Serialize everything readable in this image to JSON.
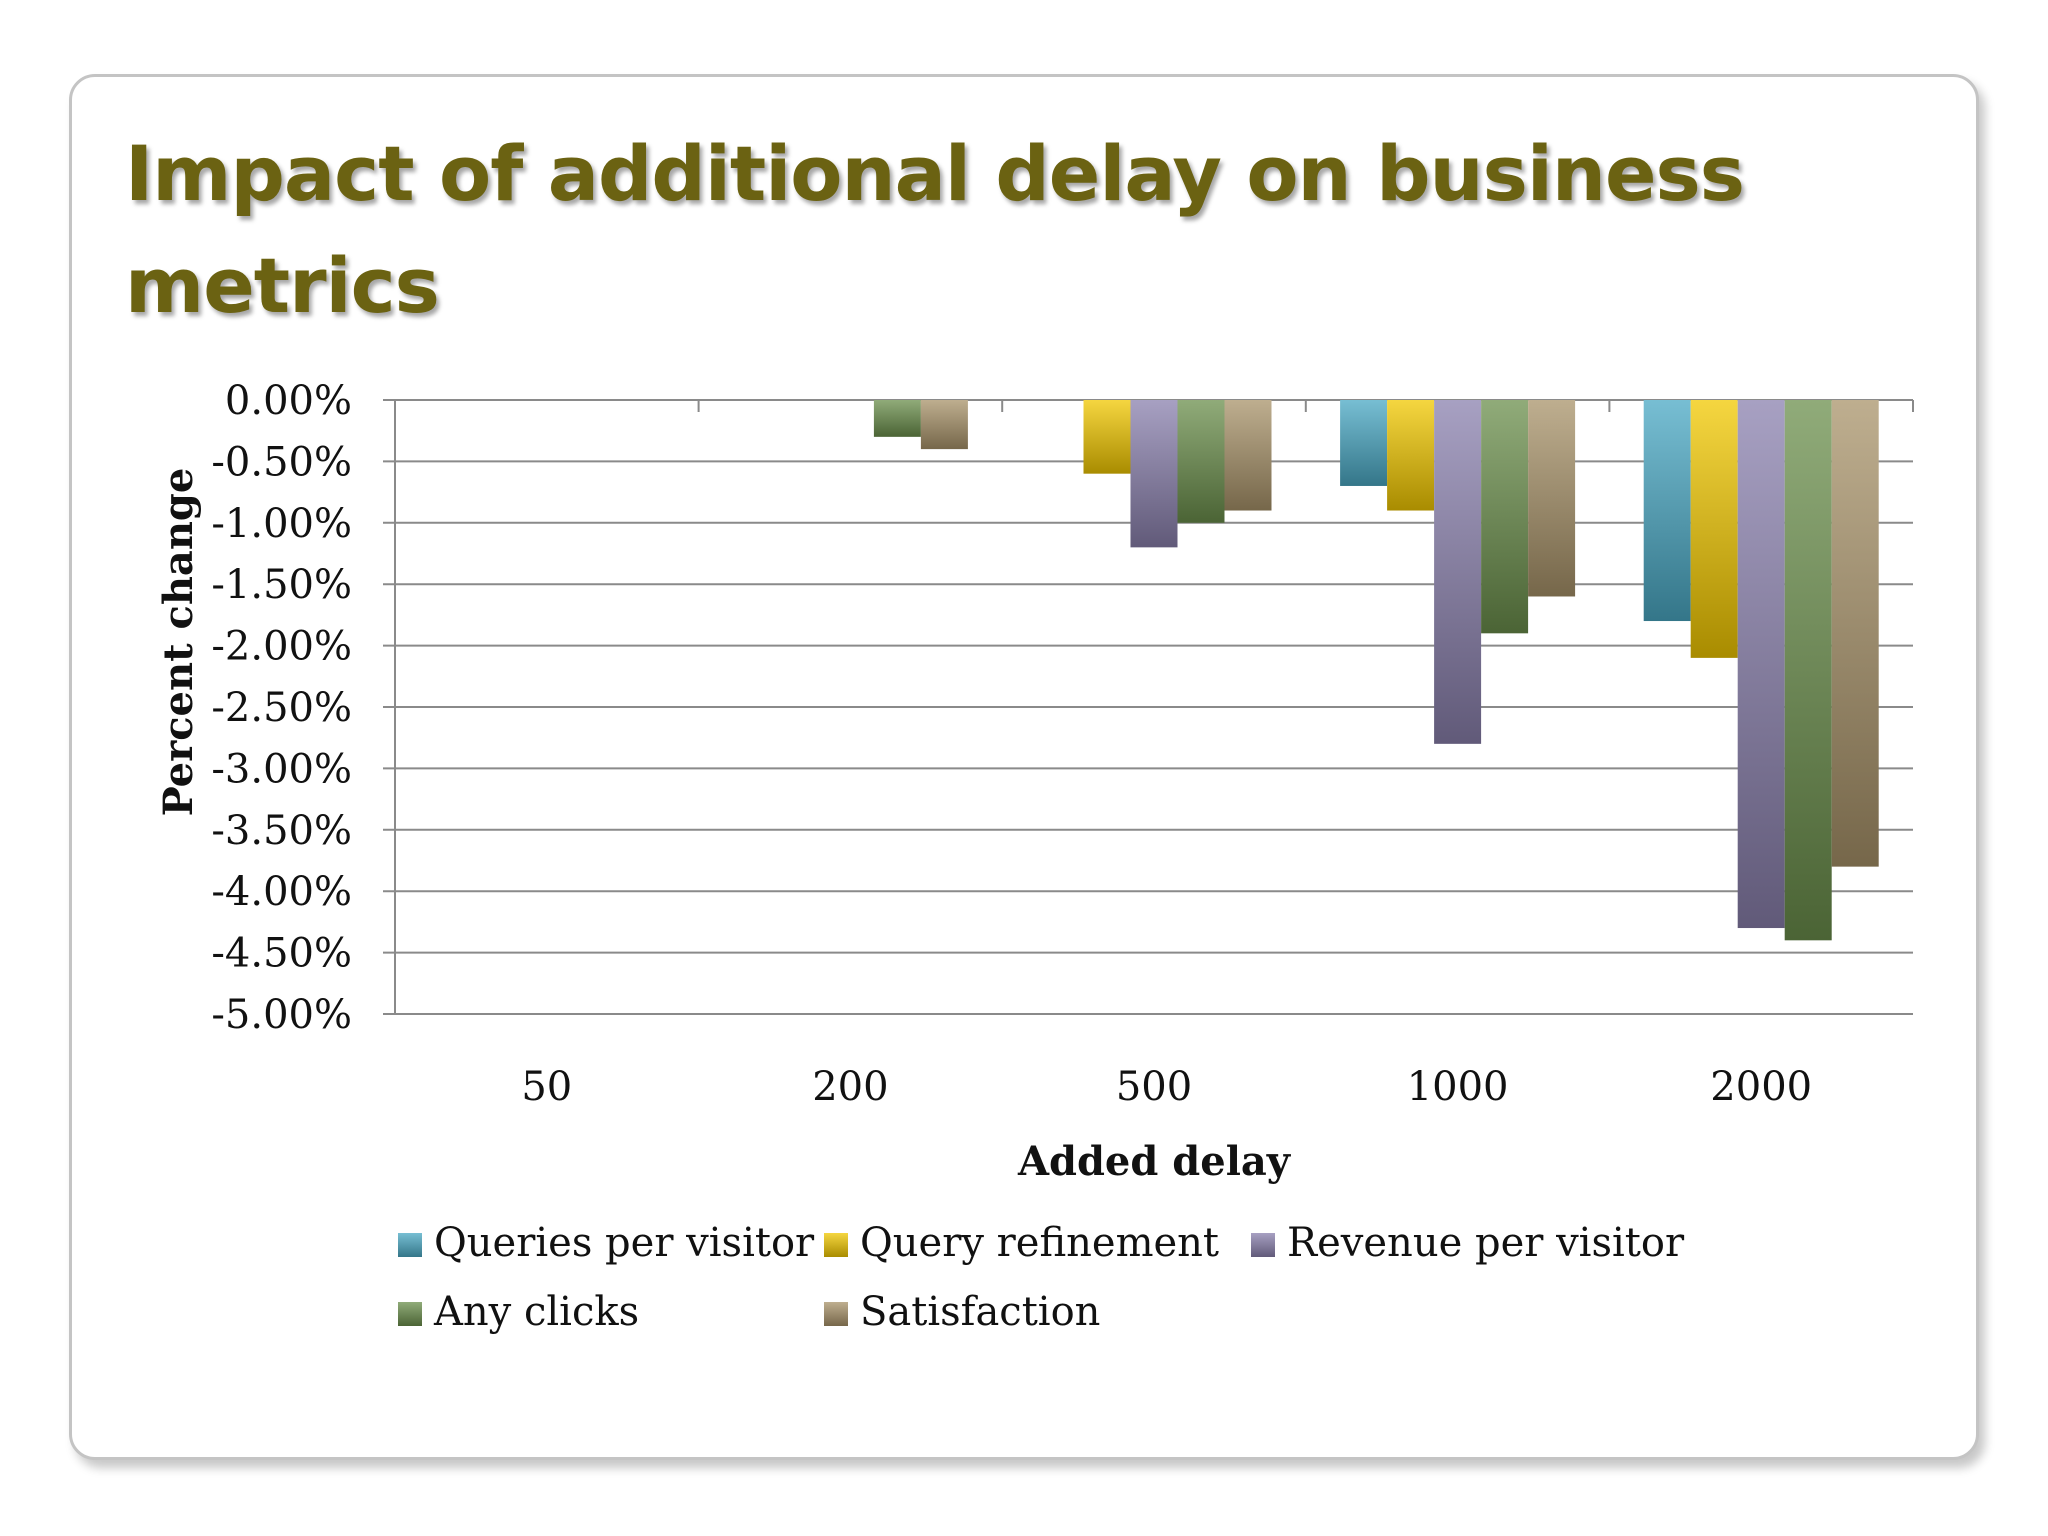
{
  "slide": {
    "title": "Impact of additional delay on business metrics"
  },
  "chart_data": {
    "type": "bar",
    "title": "Impact of additional delay on business metrics",
    "xlabel": "Added delay",
    "ylabel": "Percent change",
    "ylim": [
      -5.0,
      0.0
    ],
    "y_tick_step": 0.5,
    "y_tick_format": "percent_2dp",
    "grid": true,
    "legend_position": "bottom",
    "categories": [
      "50",
      "200",
      "500",
      "1000",
      "2000"
    ],
    "series": [
      {
        "name": "Queries per visitor",
        "color": "#4aa8c4",
        "values": [
          0,
          0,
          0,
          -0.7,
          -1.8
        ]
      },
      {
        "name": "Query refinement",
        "color": "#f2c800",
        "values": [
          0,
          0,
          -0.6,
          -0.9,
          -2.1
        ]
      },
      {
        "name": "Revenue per visitor",
        "color": "#8a80ad",
        "values": [
          0,
          0,
          -1.2,
          -2.8,
          -4.3
        ]
      },
      {
        "name": "Any clicks",
        "color": "#6b8f4c",
        "values": [
          0,
          -0.3,
          -1.0,
          -1.9,
          -4.4
        ]
      },
      {
        "name": "Satisfaction",
        "color": "#a8936a",
        "values": [
          0,
          -0.4,
          -0.9,
          -1.6,
          -3.8
        ]
      }
    ]
  }
}
